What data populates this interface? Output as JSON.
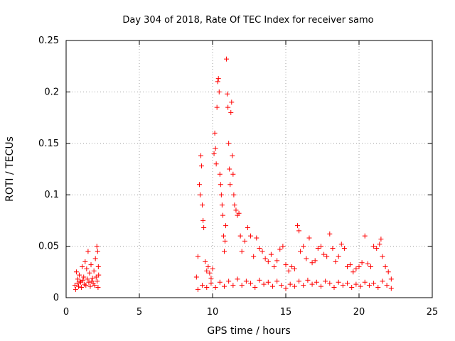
{
  "chart_data": {
    "type": "scatter",
    "title": "Day 304 of 2018, Rate Of TEC Index for receiver samo",
    "xlabel": "GPS time / hours",
    "ylabel": "ROTI / TECUs",
    "xlim": [
      0,
      25
    ],
    "ylim": [
      0,
      0.25
    ],
    "x_ticks": [
      0,
      5,
      10,
      15,
      20,
      25
    ],
    "x_tick_labels": [
      "0",
      "5",
      "10",
      "15",
      "20",
      "25"
    ],
    "y_ticks": [
      0,
      0.05,
      0.1,
      0.15,
      0.2,
      0.25
    ],
    "y_tick_labels": [
      "0",
      "0.05",
      "0.1",
      "0.15",
      "0.2",
      "0.25"
    ],
    "grid": true,
    "marker": "plus",
    "color": "#ff0000",
    "series": [
      {
        "name": "ROTI",
        "points": [
          [
            0.6,
            0.012
          ],
          [
            0.7,
            0.025
          ],
          [
            0.8,
            0.018
          ],
          [
            0.9,
            0.022
          ],
          [
            1.0,
            0.015
          ],
          [
            1.1,
            0.03
          ],
          [
            1.2,
            0.02
          ],
          [
            1.3,
            0.035
          ],
          [
            1.4,
            0.028
          ],
          [
            1.5,
            0.045
          ],
          [
            1.6,
            0.024
          ],
          [
            1.7,
            0.032
          ],
          [
            1.8,
            0.019
          ],
          [
            1.9,
            0.026
          ],
          [
            2.0,
            0.038
          ],
          [
            2.1,
            0.05
          ],
          [
            2.15,
            0.045
          ],
          [
            2.2,
            0.03
          ],
          [
            0.65,
            0.008
          ],
          [
            0.75,
            0.014
          ],
          [
            0.85,
            0.011
          ],
          [
            0.95,
            0.016
          ],
          [
            1.05,
            0.01
          ],
          [
            1.15,
            0.017
          ],
          [
            1.25,
            0.013
          ],
          [
            1.35,
            0.012
          ],
          [
            1.45,
            0.018
          ],
          [
            1.55,
            0.015
          ],
          [
            1.65,
            0.011
          ],
          [
            1.75,
            0.016
          ],
          [
            1.85,
            0.014
          ],
          [
            1.95,
            0.012
          ],
          [
            2.05,
            0.02
          ],
          [
            2.12,
            0.016
          ],
          [
            2.18,
            0.01
          ],
          [
            2.22,
            0.022
          ],
          [
            8.9,
            0.02
          ],
          [
            9.0,
            0.04
          ],
          [
            9.1,
            0.11
          ],
          [
            9.15,
            0.1
          ],
          [
            9.2,
            0.138
          ],
          [
            9.25,
            0.128
          ],
          [
            9.3,
            0.09
          ],
          [
            9.35,
            0.075
          ],
          [
            9.4,
            0.068
          ],
          [
            9.5,
            0.035
          ],
          [
            9.6,
            0.026
          ],
          [
            9.7,
            0.03
          ],
          [
            9.8,
            0.024
          ],
          [
            9.9,
            0.019
          ],
          [
            10.0,
            0.028
          ],
          [
            10.1,
            0.14
          ],
          [
            10.15,
            0.16
          ],
          [
            10.2,
            0.145
          ],
          [
            10.25,
            0.13
          ],
          [
            10.3,
            0.185
          ],
          [
            10.35,
            0.21
          ],
          [
            10.4,
            0.213
          ],
          [
            10.45,
            0.2
          ],
          [
            10.5,
            0.12
          ],
          [
            10.55,
            0.11
          ],
          [
            10.6,
            0.1
          ],
          [
            10.65,
            0.09
          ],
          [
            10.7,
            0.08
          ],
          [
            10.75,
            0.06
          ],
          [
            10.8,
            0.045
          ],
          [
            10.85,
            0.055
          ],
          [
            10.9,
            0.07
          ],
          [
            10.95,
            0.232
          ],
          [
            11.0,
            0.198
          ],
          [
            11.05,
            0.185
          ],
          [
            11.1,
            0.15
          ],
          [
            11.15,
            0.125
          ],
          [
            11.2,
            0.11
          ],
          [
            11.25,
            0.18
          ],
          [
            11.3,
            0.19
          ],
          [
            11.35,
            0.138
          ],
          [
            11.4,
            0.12
          ],
          [
            11.45,
            0.1
          ],
          [
            11.5,
            0.09
          ],
          [
            11.6,
            0.085
          ],
          [
            11.7,
            0.08
          ],
          [
            11.8,
            0.082
          ],
          [
            11.9,
            0.06
          ],
          [
            12.0,
            0.045
          ],
          [
            12.2,
            0.055
          ],
          [
            12.4,
            0.068
          ],
          [
            12.6,
            0.06
          ],
          [
            12.8,
            0.04
          ],
          [
            13.0,
            0.058
          ],
          [
            13.2,
            0.048
          ],
          [
            13.4,
            0.045
          ],
          [
            13.6,
            0.038
          ],
          [
            13.8,
            0.035
          ],
          [
            14.0,
            0.042
          ],
          [
            14.2,
            0.03
          ],
          [
            14.4,
            0.036
          ],
          [
            14.6,
            0.047
          ],
          [
            14.8,
            0.05
          ],
          [
            15.0,
            0.032
          ],
          [
            15.2,
            0.026
          ],
          [
            15.4,
            0.03
          ],
          [
            15.6,
            0.028
          ],
          [
            15.8,
            0.07
          ],
          [
            15.9,
            0.065
          ],
          [
            16.0,
            0.045
          ],
          [
            16.2,
            0.05
          ],
          [
            16.4,
            0.038
          ],
          [
            16.6,
            0.058
          ],
          [
            16.8,
            0.034
          ],
          [
            17.0,
            0.036
          ],
          [
            17.2,
            0.048
          ],
          [
            17.4,
            0.05
          ],
          [
            17.6,
            0.042
          ],
          [
            17.8,
            0.04
          ],
          [
            18.0,
            0.062
          ],
          [
            18.2,
            0.048
          ],
          [
            18.4,
            0.035
          ],
          [
            18.6,
            0.04
          ],
          [
            18.8,
            0.052
          ],
          [
            19.0,
            0.048
          ],
          [
            19.2,
            0.03
          ],
          [
            19.4,
            0.032
          ],
          [
            19.6,
            0.025
          ],
          [
            19.8,
            0.028
          ],
          [
            20.0,
            0.03
          ],
          [
            20.2,
            0.034
          ],
          [
            20.4,
            0.06
          ],
          [
            20.6,
            0.033
          ],
          [
            20.8,
            0.03
          ],
          [
            21.0,
            0.05
          ],
          [
            21.2,
            0.048
          ],
          [
            21.4,
            0.052
          ],
          [
            21.5,
            0.057
          ],
          [
            21.6,
            0.04
          ],
          [
            21.8,
            0.03
          ],
          [
            22.0,
            0.025
          ],
          [
            22.2,
            0.018
          ],
          [
            9.0,
            0.008
          ],
          [
            9.3,
            0.012
          ],
          [
            9.6,
            0.01
          ],
          [
            9.9,
            0.014
          ],
          [
            10.2,
            0.01
          ],
          [
            10.5,
            0.015
          ],
          [
            10.8,
            0.011
          ],
          [
            11.1,
            0.016
          ],
          [
            11.4,
            0.012
          ],
          [
            11.7,
            0.018
          ],
          [
            12.0,
            0.012
          ],
          [
            12.3,
            0.016
          ],
          [
            12.6,
            0.014
          ],
          [
            12.9,
            0.01
          ],
          [
            13.2,
            0.017
          ],
          [
            13.5,
            0.013
          ],
          [
            13.8,
            0.015
          ],
          [
            14.1,
            0.011
          ],
          [
            14.4,
            0.016
          ],
          [
            14.7,
            0.012
          ],
          [
            15.0,
            0.009
          ],
          [
            15.3,
            0.013
          ],
          [
            15.6,
            0.011
          ],
          [
            15.9,
            0.016
          ],
          [
            16.2,
            0.012
          ],
          [
            16.5,
            0.017
          ],
          [
            16.8,
            0.013
          ],
          [
            17.1,
            0.015
          ],
          [
            17.4,
            0.011
          ],
          [
            17.7,
            0.016
          ],
          [
            18.0,
            0.014
          ],
          [
            18.3,
            0.01
          ],
          [
            18.6,
            0.015
          ],
          [
            18.9,
            0.012
          ],
          [
            19.2,
            0.014
          ],
          [
            19.5,
            0.01
          ],
          [
            19.8,
            0.013
          ],
          [
            20.1,
            0.011
          ],
          [
            20.4,
            0.015
          ],
          [
            20.7,
            0.012
          ],
          [
            21.0,
            0.014
          ],
          [
            21.3,
            0.01
          ],
          [
            21.6,
            0.016
          ],
          [
            21.9,
            0.012
          ],
          [
            22.2,
            0.009
          ]
        ]
      }
    ]
  }
}
